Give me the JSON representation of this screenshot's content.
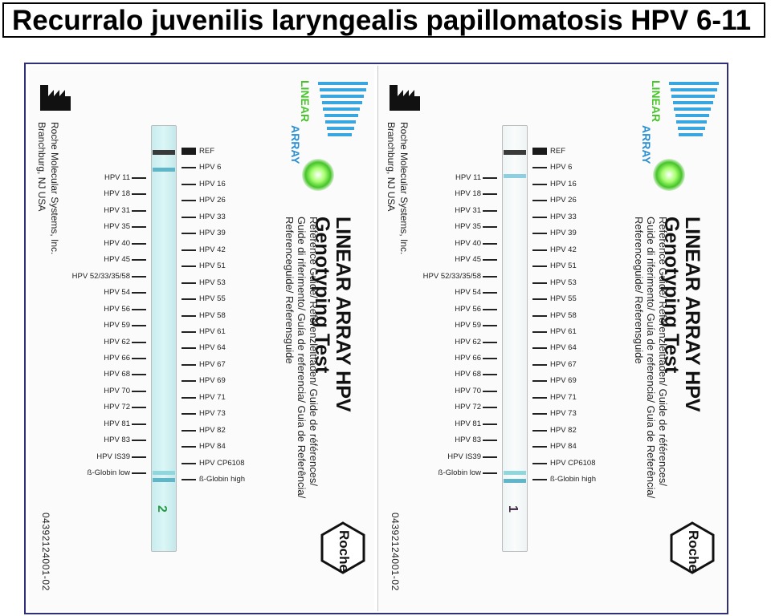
{
  "title": "Recurralo juvenilis laryngealis papillomatosis HPV 6-11",
  "card": {
    "manufacturer_line1": "Roche Molecular Systems, Inc.",
    "manufacturer_line2": "Branchburg, NJ USA",
    "product_title_line1": "LINEAR ARRAY HPV",
    "product_title_line2": "Genotyping Test",
    "subtitle_line1": "Reference Guide/ Referenzleitfaden/ Guide de références/",
    "subtitle_line2": "Guide di riferimento/ Guía de referencia/ Guia de Referência/",
    "subtitle_line3": "Referenceguide/ Referensguide",
    "catalog_number": "04392124001-02",
    "logo_word_top": "LINEAR",
    "logo_word_bottom": "ARRAY",
    "roche_logo": "Roche"
  },
  "left_labels": [
    "HPV 11",
    "HPV 18",
    "HPV 31",
    "HPV 35",
    "HPV 40",
    "HPV 45",
    "HPV 52/33/35/58",
    "HPV 54",
    "HPV 56",
    "HPV 59",
    "HPV 62",
    "HPV 66",
    "HPV 68",
    "HPV 70",
    "HPV 72",
    "HPV 81",
    "HPV 83",
    "HPV IS39",
    "ß-Globin low"
  ],
  "right_labels": [
    "REF",
    "HPV 6",
    "HPV 16",
    "HPV 26",
    "HPV 33",
    "HPV 39",
    "HPV 42",
    "HPV 51",
    "HPV 53",
    "HPV 55",
    "HPV 58",
    "HPV 61",
    "HPV 64",
    "HPV 67",
    "HPV 69",
    "HPV 71",
    "HPV 73",
    "HPV 82",
    "HPV 84",
    "HPV CP6108",
    "ß-Globin high"
  ],
  "strip_handwriting": {
    "left": "2",
    "right": "1"
  },
  "colors": {
    "band_positive": "#5fb6c9",
    "band_ref": "#3a3a3a",
    "strip_left": "#d3f1f2",
    "logo_blue": "#3aa6e0",
    "logo_green": "#46c42a"
  }
}
